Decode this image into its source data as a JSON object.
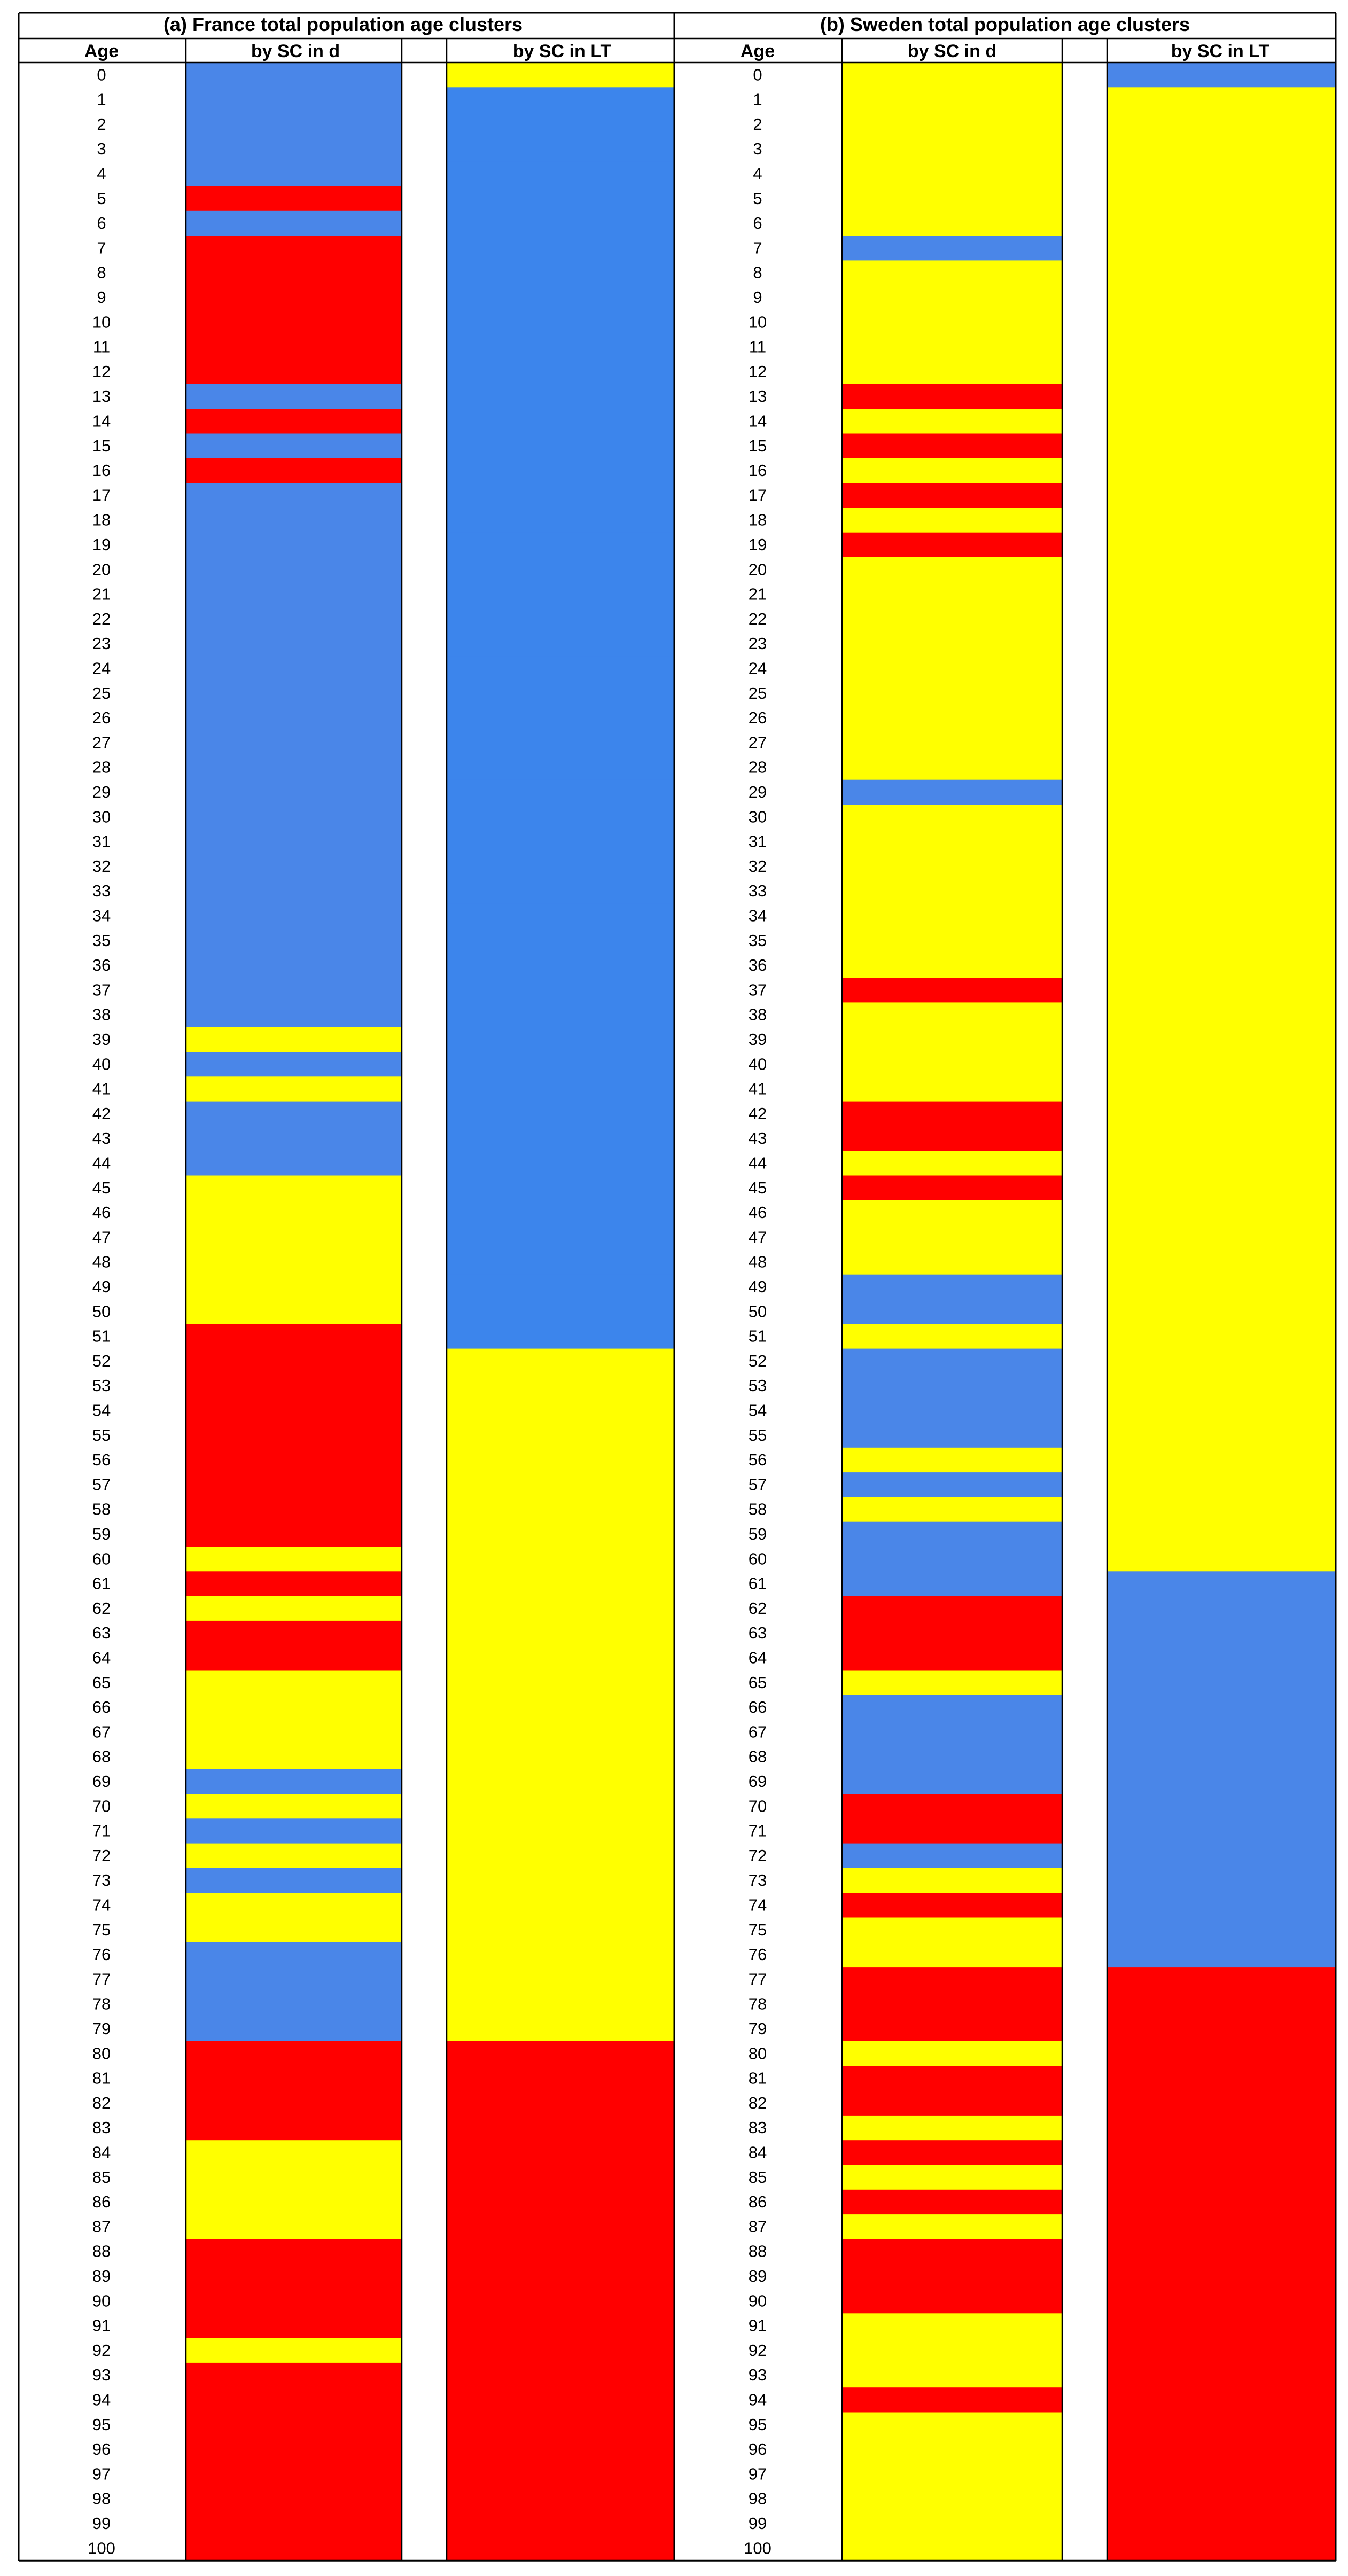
{
  "colors": {
    "1": "#ffff00",
    "2": "#4a86e8",
    "3": "#ff0000",
    "4": "#3c85ec"
  },
  "chart_data": {
    "type": "heatmap",
    "ages": [
      0,
      1,
      2,
      3,
      4,
      5,
      6,
      7,
      8,
      9,
      10,
      11,
      12,
      13,
      14,
      15,
      16,
      17,
      18,
      19,
      20,
      21,
      22,
      23,
      24,
      25,
      26,
      27,
      28,
      29,
      30,
      31,
      32,
      33,
      34,
      35,
      36,
      37,
      38,
      39,
      40,
      41,
      42,
      43,
      44,
      45,
      46,
      47,
      48,
      49,
      50,
      51,
      52,
      53,
      54,
      55,
      56,
      57,
      58,
      59,
      60,
      61,
      62,
      63,
      64,
      65,
      66,
      67,
      68,
      69,
      70,
      71,
      72,
      73,
      74,
      75,
      76,
      77,
      78,
      79,
      80,
      81,
      82,
      83,
      84,
      85,
      86,
      87,
      88,
      89,
      90,
      91,
      92,
      93,
      94,
      95,
      96,
      97,
      98,
      99,
      100
    ],
    "panels": [
      {
        "title": "(a) France total population age clusters",
        "age_header": "Age",
        "columns": [
          {
            "label": "by SC in d",
            "clusters": [
              2,
              2,
              2,
              2,
              2,
              3,
              2,
              3,
              3,
              3,
              3,
              3,
              3,
              2,
              3,
              2,
              3,
              2,
              2,
              2,
              2,
              2,
              2,
              2,
              2,
              2,
              2,
              2,
              2,
              2,
              2,
              2,
              2,
              2,
              2,
              2,
              2,
              2,
              2,
              1,
              2,
              1,
              2,
              2,
              2,
              1,
              1,
              1,
              1,
              1,
              1,
              3,
              3,
              3,
              3,
              3,
              3,
              3,
              3,
              3,
              1,
              3,
              1,
              3,
              3,
              1,
              1,
              1,
              1,
              2,
              1,
              2,
              1,
              2,
              1,
              1,
              2,
              2,
              2,
              2,
              3,
              3,
              3,
              3,
              1,
              1,
              1,
              1,
              3,
              3,
              3,
              3,
              1,
              3,
              3,
              3,
              3,
              3,
              3,
              3,
              3
            ]
          },
          {
            "label": "by SC in LT",
            "clusters": [
              1,
              4,
              4,
              4,
              4,
              4,
              4,
              4,
              4,
              4,
              4,
              4,
              4,
              4,
              4,
              4,
              4,
              4,
              4,
              4,
              4,
              4,
              4,
              4,
              4,
              4,
              4,
              4,
              4,
              4,
              4,
              4,
              4,
              4,
              4,
              4,
              4,
              4,
              4,
              4,
              4,
              4,
              4,
              4,
              4,
              4,
              4,
              4,
              4,
              4,
              4,
              4,
              1,
              1,
              1,
              1,
              1,
              1,
              1,
              1,
              1,
              1,
              1,
              1,
              1,
              1,
              1,
              1,
              1,
              1,
              1,
              1,
              1,
              1,
              1,
              1,
              1,
              1,
              1,
              1,
              3,
              3,
              3,
              3,
              3,
              3,
              3,
              3,
              3,
              3,
              3,
              3,
              3,
              3,
              3,
              3,
              3,
              3,
              3,
              3,
              3
            ]
          }
        ]
      },
      {
        "title": "(b) Sweden total population age clusters",
        "age_header": "Age",
        "columns": [
          {
            "label": "by SC in d",
            "clusters": [
              1,
              1,
              1,
              1,
              1,
              1,
              1,
              2,
              1,
              1,
              1,
              1,
              1,
              3,
              1,
              3,
              1,
              3,
              1,
              3,
              1,
              1,
              1,
              1,
              1,
              1,
              1,
              1,
              1,
              2,
              1,
              1,
              1,
              1,
              1,
              1,
              1,
              3,
              1,
              1,
              1,
              1,
              3,
              3,
              1,
              3,
              1,
              1,
              1,
              2,
              2,
              1,
              2,
              2,
              2,
              2,
              1,
              2,
              1,
              2,
              2,
              2,
              3,
              3,
              3,
              1,
              2,
              2,
              2,
              2,
              3,
              3,
              2,
              1,
              3,
              1,
              1,
              3,
              3,
              3,
              1,
              3,
              3,
              1,
              3,
              1,
              3,
              1,
              3,
              3,
              3,
              1,
              1,
              1,
              3,
              1,
              1,
              1,
              1,
              1,
              1
            ]
          },
          {
            "label": "by SC in LT",
            "clusters": [
              2,
              1,
              1,
              1,
              1,
              1,
              1,
              1,
              1,
              1,
              1,
              1,
              1,
              1,
              1,
              1,
              1,
              1,
              1,
              1,
              1,
              1,
              1,
              1,
              1,
              1,
              1,
              1,
              1,
              1,
              1,
              1,
              1,
              1,
              1,
              1,
              1,
              1,
              1,
              1,
              1,
              1,
              1,
              1,
              1,
              1,
              1,
              1,
              1,
              1,
              1,
              1,
              1,
              1,
              1,
              1,
              1,
              1,
              1,
              1,
              1,
              2,
              2,
              2,
              2,
              2,
              2,
              2,
              2,
              2,
              2,
              2,
              2,
              2,
              2,
              2,
              2,
              3,
              3,
              3,
              3,
              3,
              3,
              3,
              3,
              3,
              3,
              3,
              3,
              3,
              3,
              3,
              3,
              3,
              3,
              3,
              3,
              3,
              3,
              3,
              3
            ]
          }
        ]
      }
    ]
  }
}
